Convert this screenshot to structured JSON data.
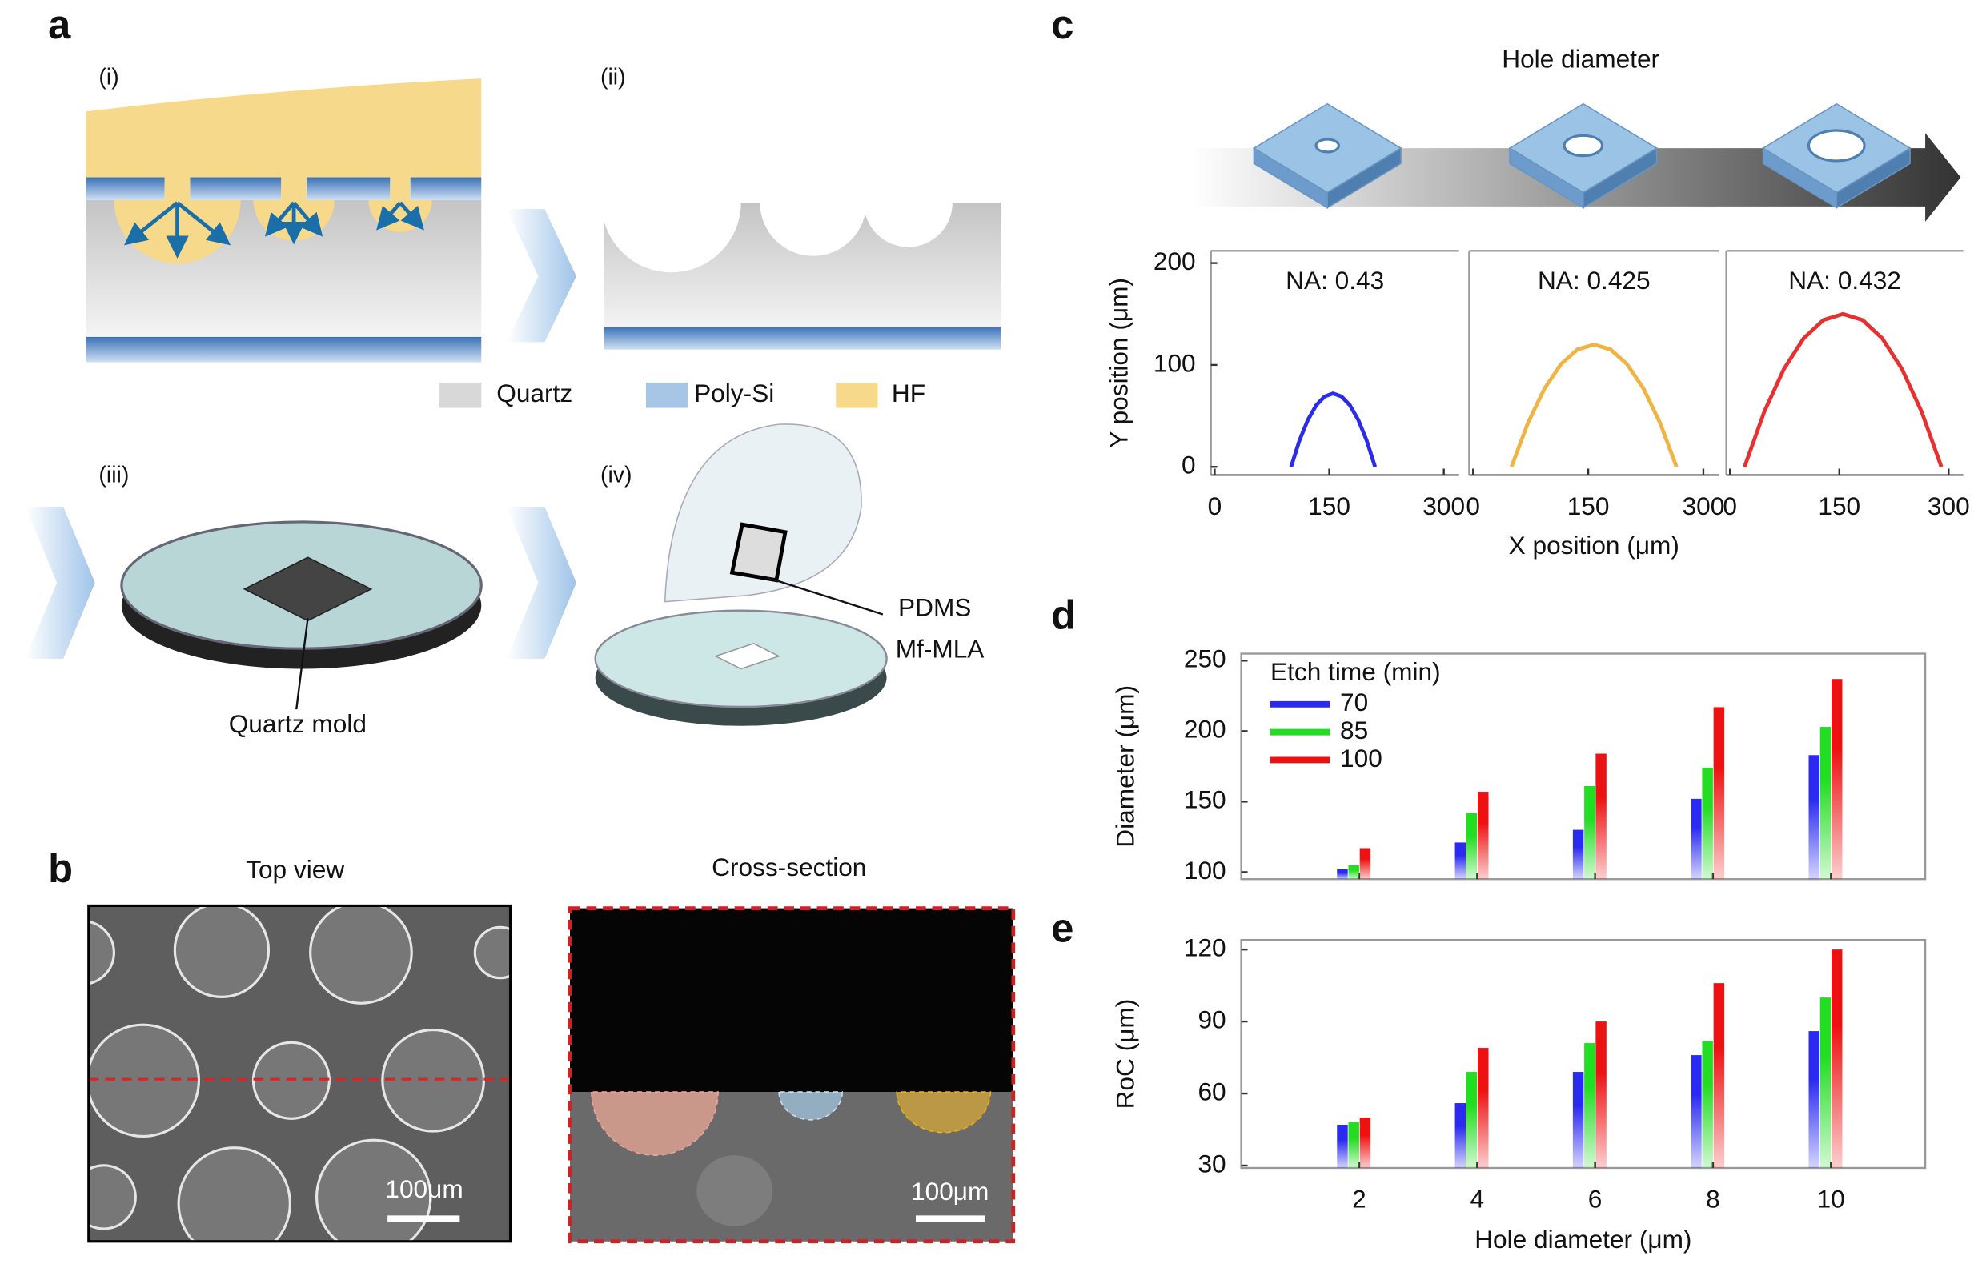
{
  "figure": {
    "panels": [
      "a",
      "b",
      "c",
      "d",
      "e"
    ],
    "steps": [
      "(i)",
      "(ii)",
      "(iii)",
      "(iv)"
    ],
    "legend": [
      "Quartz",
      "Poly-Si",
      "HF"
    ],
    "mold_label": "Quartz mold",
    "pdms_label": [
      "PDMS",
      "Mf-MLA"
    ],
    "views": [
      "Top view",
      "Cross-section"
    ],
    "scale_bars": [
      "100μm",
      "100μm"
    ],
    "c_title": "Hole diameter"
  },
  "chart_data": [
    {
      "type": "line",
      "annotation": "NA: 0.43",
      "ylabel": "Y position (μm)",
      "ylim": [
        -8,
        212
      ],
      "yticks": [
        0,
        100,
        200
      ],
      "xlim": [
        -5,
        320
      ],
      "xticks": [
        0,
        150,
        300
      ],
      "x": [
        100,
        111,
        122,
        133,
        144,
        155,
        166,
        177,
        188,
        199,
        210
      ],
      "series": [
        {
          "color": "#2b2bea",
          "values": [
            0,
            25.9,
            46.1,
            60.5,
            69.1,
            72,
            69.1,
            60.5,
            46.1,
            25.9,
            0
          ]
        }
      ]
    },
    {
      "type": "line",
      "annotation": "NA: 0.425",
      "xlabel": "X position (μm)",
      "ylim": [
        -8,
        212
      ],
      "xlim": [
        -5,
        320
      ],
      "xticks": [
        0,
        150,
        300
      ],
      "x": [
        50,
        71.5,
        93,
        114.5,
        136,
        157.5,
        179,
        200.5,
        222,
        243.5,
        265
      ],
      "series": [
        {
          "color": "#efb443",
          "values": [
            0,
            43.2,
            76.8,
            100.8,
            115.2,
            120,
            115.2,
            100.8,
            76.8,
            43.2,
            0
          ]
        }
      ]
    },
    {
      "type": "line",
      "annotation": "NA: 0.432",
      "ylim": [
        -8,
        212
      ],
      "xlim": [
        -5,
        320
      ],
      "xticks": [
        0,
        150,
        300
      ],
      "x": [
        20,
        47,
        74,
        101,
        128,
        155,
        182,
        209,
        236,
        263,
        290
      ],
      "series": [
        {
          "color": "#e83030",
          "values": [
            0,
            54,
            96,
            126,
            144,
            150,
            144,
            126,
            96,
            54,
            0
          ]
        }
      ]
    },
    {
      "type": "bar",
      "ylabel": "Diameter (μm)",
      "legend_title": "Etch time (min)",
      "x": [
        2,
        4,
        6,
        8,
        10
      ],
      "xlim": [
        0,
        11.6
      ],
      "ylim": [
        95,
        255
      ],
      "yticks": [
        100,
        150,
        200,
        250
      ],
      "series": [
        {
          "name": "70",
          "color": "#2a2af0",
          "values": [
            102,
            121,
            130,
            152,
            183
          ]
        },
        {
          "name": "85",
          "color": "#22dd22",
          "values": [
            105,
            142,
            161,
            174,
            203
          ]
        },
        {
          "name": "100",
          "color": "#ee1111",
          "values": [
            117,
            157,
            184,
            217,
            237
          ]
        }
      ]
    },
    {
      "type": "bar",
      "ylabel": "RoC (μm)",
      "xlabel": "Hole diameter (μm)",
      "x": [
        2,
        4,
        6,
        8,
        10
      ],
      "xlim": [
        0,
        11.6
      ],
      "xticks": [
        2,
        4,
        6,
        8,
        10
      ],
      "ylim": [
        29,
        124
      ],
      "yticks": [
        30,
        60,
        90,
        120
      ],
      "series": [
        {
          "color": "#2a2af0",
          "values": [
            47,
            56,
            69,
            76,
            86
          ]
        },
        {
          "color": "#22dd22",
          "values": [
            48,
            69,
            81,
            82,
            100
          ]
        },
        {
          "color": "#ee1111",
          "values": [
            50,
            79,
            90,
            106,
            120
          ]
        }
      ]
    }
  ]
}
